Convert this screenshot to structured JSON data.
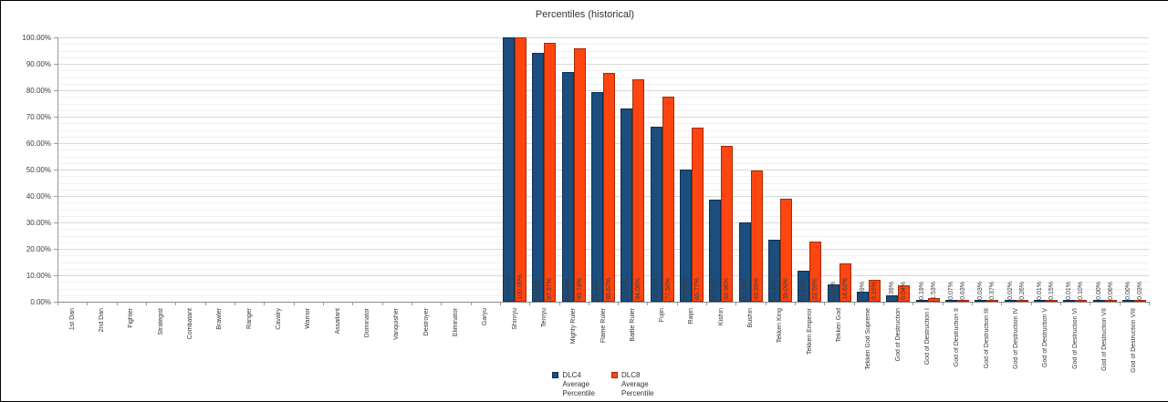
{
  "title": "Percentiles (historical)",
  "colors": {
    "dlc4_fill": "#1b4e7e",
    "dlc4_border": "#0d2f52",
    "dlc8_fill": "#ff4510",
    "dlc8_border": "#a62c00",
    "grid_major": "#d8d8d8",
    "grid_minor": "#f0f0f0",
    "axis": "#9a9a9a",
    "text": "#333333"
  },
  "legend": [
    {
      "label_lines": [
        "DLC4",
        "Average",
        "Percentile"
      ],
      "color": "#1b4e7e",
      "border": "#0d2f52"
    },
    {
      "label_lines": [
        "DLC8",
        "Average",
        "Percentile"
      ],
      "color": "#ff4510",
      "border": "#a62c00"
    }
  ],
  "chart_data": {
    "type": "bar",
    "title": "Percentiles (historical)",
    "categories": [
      "1st Dan",
      "2nd Dan",
      "Fighter",
      "Strategist",
      "Combatant",
      "Brawler",
      "Ranger",
      "Cavalry",
      "Warrior",
      "Assailant",
      "Dominator",
      "Vanquisher",
      "Destroyer",
      "Eliminator",
      "Garyu",
      "Shinryu",
      "Tenryu",
      "Mighty Ruler",
      "Flame Ruler",
      "Battle Ruler",
      "Fujin",
      "Raijin",
      "Kishin",
      "Bushin",
      "Tekken King",
      "Tekken Emperor",
      "Tekken God",
      "Tekken God Supreme",
      "God of Destruction",
      "God of Destruction I",
      "God of Destruction II",
      "God of Destruction III",
      "God of Destruction IV",
      "God of Destruction V",
      "God of Destruction VI",
      "God of Destruction VII",
      "God of Destruction VIII"
    ],
    "series": [
      {
        "name": "DLC4 Average Percentile",
        "values": [
          null,
          null,
          null,
          null,
          null,
          null,
          null,
          null,
          null,
          null,
          null,
          null,
          null,
          null,
          null,
          100.0,
          94.29,
          86.98,
          79.42,
          73.09,
          66.26,
          49.89,
          38.78,
          30.1,
          23.41,
          11.68,
          6.46,
          3.69,
          2.39,
          0.19,
          0.07,
          0.03,
          0.02,
          0.01,
          0.01,
          0.0,
          0.0
        ]
      },
      {
        "name": "DLC8 Average Percentile",
        "values": [
          null,
          null,
          null,
          null,
          null,
          null,
          null,
          null,
          null,
          null,
          null,
          null,
          null,
          null,
          null,
          100.0,
          97.97,
          95.74,
          86.67,
          84.06,
          77.5,
          65.77,
          58.96,
          49.59,
          39.09,
          22.59,
          14.62,
          8.15,
          6.04,
          1.53,
          0.63,
          0.37,
          0.26,
          0.15,
          0.1,
          0.06,
          0.03
        ]
      }
    ],
    "ylim": [
      0,
      100
    ],
    "y_tick_interval": 10,
    "y_minor_tick_interval": 2.5,
    "y_tick_labels": [
      "0.00%",
      "10.00%",
      "20.00%",
      "30.00%",
      "40.00%",
      "50.00%",
      "60.00%",
      "70.00%",
      "80.00%",
      "90.00%",
      "100.00%"
    ],
    "value_label_format": "0.00%",
    "grid": true,
    "legend_position": "bottom"
  }
}
